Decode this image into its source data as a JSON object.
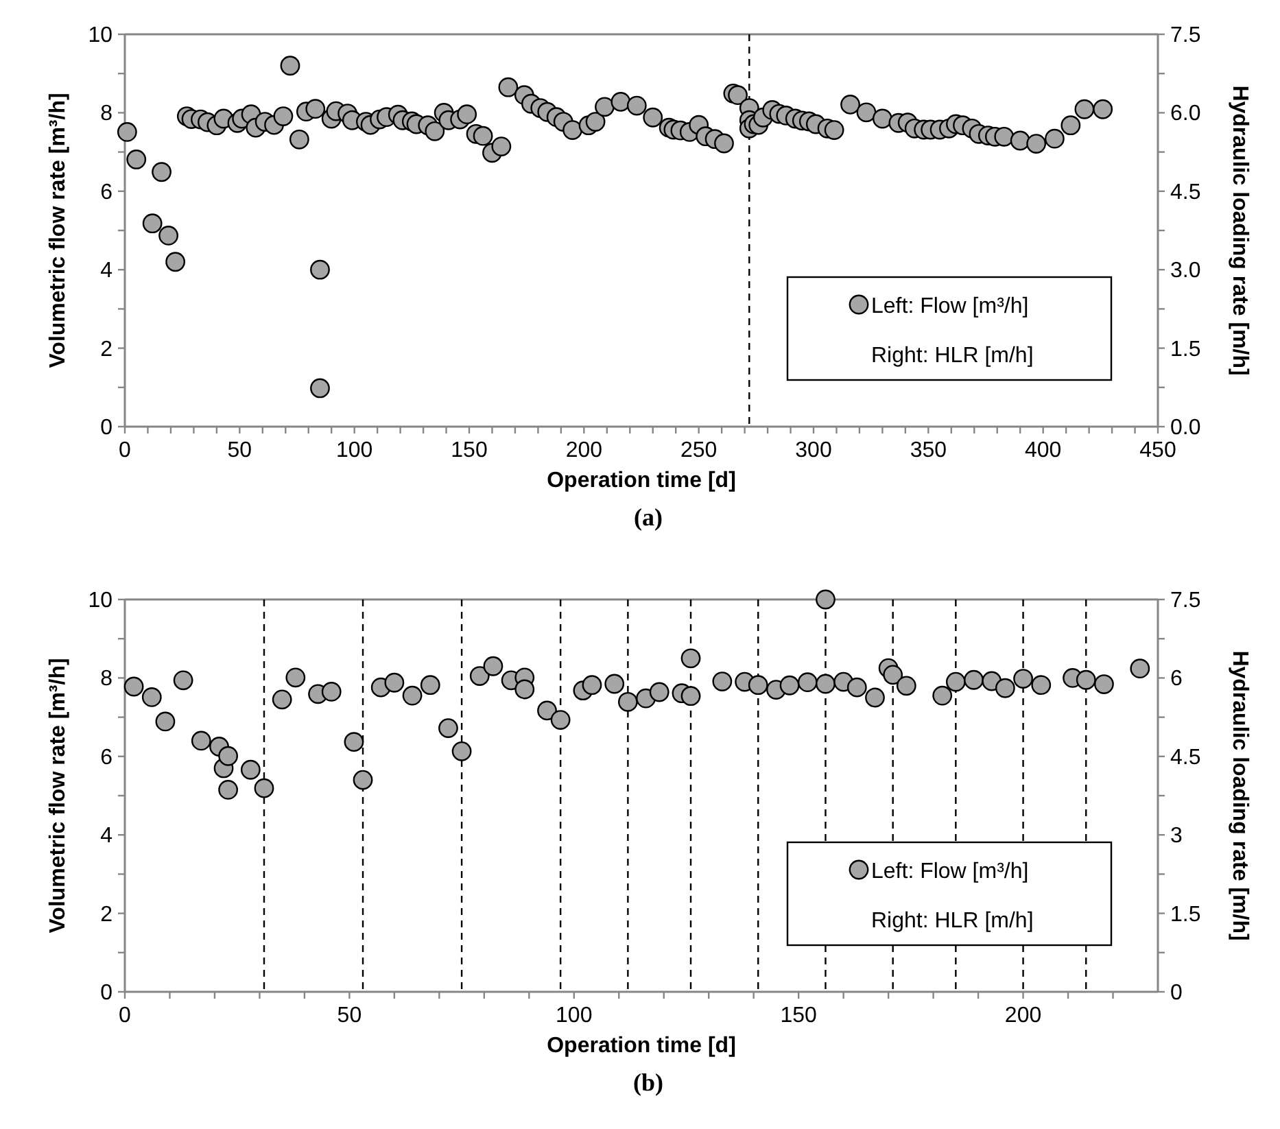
{
  "chart_data": [
    {
      "type": "scatter",
      "title": "(a)",
      "xlabel": "Operation time [d]",
      "ylabel": "Volumetric flow rate [m³/h]",
      "y2label": "Hydraulic loading rate [m/h]",
      "xlim": [
        0,
        450
      ],
      "xticks": [
        0,
        {
          "value": 10,
          "label": null
        },
        {
          "value": 20,
          "label": null
        },
        {
          "value": 30,
          "label": null
        },
        {
          "value": 40,
          "label": null
        },
        50,
        {
          "value": 60,
          "label": null
        },
        {
          "value": 70,
          "label": null
        },
        {
          "value": 80,
          "label": null
        },
        {
          "value": 90,
          "label": null
        },
        100,
        {
          "value": 110,
          "label": null
        },
        {
          "value": 120,
          "label": null
        },
        {
          "value": 130,
          "label": null
        },
        {
          "value": 140,
          "label": null
        },
        150,
        {
          "value": 160,
          "label": null
        },
        {
          "value": 170,
          "label": null
        },
        {
          "value": 180,
          "label": null
        },
        {
          "value": 190,
          "label": null
        },
        200,
        {
          "value": 210,
          "label": null
        },
        {
          "value": 220,
          "label": null
        },
        {
          "value": 230,
          "label": null
        },
        {
          "value": 240,
          "label": null
        },
        250,
        {
          "value": 260,
          "label": null
        },
        {
          "value": 270,
          "label": null
        },
        {
          "value": 280,
          "label": null
        },
        {
          "value": 290,
          "label": null
        },
        300,
        {
          "value": 310,
          "label": null
        },
        {
          "value": 320,
          "label": null
        },
        {
          "value": 330,
          "label": null
        },
        {
          "value": 340,
          "label": null
        },
        350,
        {
          "value": 360,
          "label": null
        },
        {
          "value": 370,
          "label": null
        },
        {
          "value": 380,
          "label": null
        },
        {
          "value": 390,
          "label": null
        },
        400,
        {
          "value": 410,
          "label": null
        },
        {
          "value": 420,
          "label": null
        },
        {
          "value": 430,
          "label": null
        },
        {
          "value": 440,
          "label": null
        },
        450
      ],
      "ylim": [
        0,
        10
      ],
      "yticks": [
        0,
        {
          "value": 1,
          "label": null
        },
        2,
        {
          "value": 3,
          "label": null
        },
        4,
        {
          "value": 5,
          "label": null
        },
        6,
        {
          "value": 7,
          "label": null
        },
        8,
        {
          "value": 9,
          "label": null
        },
        10
      ],
      "y2lim": [
        0,
        7.5
      ],
      "y2ticks": [
        {
          "value": 0,
          "label": "0.0"
        },
        {
          "value": 0.75,
          "label": null
        },
        1.5,
        {
          "value": 2.25,
          "label": null
        },
        {
          "value": 3,
          "label": "3.0"
        },
        {
          "value": 3.75,
          "label": null
        },
        4.5,
        {
          "value": 5.25,
          "label": null
        },
        {
          "value": 6,
          "label": "6.0"
        },
        {
          "value": 6.75,
          "label": null
        },
        7.5
      ],
      "marker": "circle",
      "legend": "bottom right",
      "grid": false,
      "annotations": [
        "Right: HLR [m/h]"
      ],
      "ref_lines": [
        {
          "axis": "x",
          "value": 272,
          "color": "#000000",
          "line_style": "dashed"
        }
      ],
      "series": [
        {
          "name": "Left: Flow [m³/h]",
          "color": "#a6a6a6",
          "x": [
            1,
            5,
            12,
            16,
            19,
            22,
            27,
            29,
            33,
            36,
            40,
            43,
            49,
            51,
            55,
            57,
            61,
            65,
            69,
            72,
            76,
            79,
            83,
            85,
            85,
            90,
            92,
            97,
            99,
            105,
            107,
            111,
            114,
            119,
            121,
            125,
            127,
            132,
            135,
            139,
            141,
            146,
            149,
            153,
            156,
            160,
            164,
            167,
            174,
            177,
            181,
            184,
            188,
            191,
            195,
            202,
            205,
            209,
            216,
            223,
            230,
            237,
            239,
            242,
            246,
            250,
            253,
            257,
            261,
            265,
            267,
            272,
            272,
            272,
            274,
            276,
            278,
            282,
            285,
            288,
            292,
            295,
            298,
            301,
            306,
            309,
            316,
            323,
            330,
            337,
            341,
            344,
            348,
            351,
            355,
            359,
            362,
            365,
            369,
            372,
            376,
            379,
            383,
            390,
            397,
            405,
            412,
            418,
            426
          ],
          "values": [
            7.51,
            6.81,
            5.18,
            6.49,
            4.87,
            4.2,
            7.91,
            7.84,
            7.83,
            7.76,
            7.68,
            7.85,
            7.74,
            7.85,
            7.96,
            7.62,
            7.77,
            7.69,
            7.91,
            9.2,
            7.32,
            8.03,
            8.1,
            4.0,
            0.98,
            7.85,
            8.04,
            7.98,
            7.81,
            7.77,
            7.69,
            7.83,
            7.89,
            7.95,
            7.81,
            7.78,
            7.71,
            7.68,
            7.53,
            8.0,
            7.81,
            7.83,
            7.96,
            7.46,
            7.41,
            6.98,
            7.14,
            8.65,
            8.45,
            8.23,
            8.12,
            8.02,
            7.89,
            7.77,
            7.56,
            7.68,
            7.77,
            8.15,
            8.28,
            8.18,
            7.88,
            7.62,
            7.57,
            7.55,
            7.51,
            7.69,
            7.4,
            7.33,
            7.22,
            8.49,
            8.45,
            8.12,
            7.81,
            7.6,
            7.71,
            7.69,
            7.88,
            8.07,
            7.97,
            7.93,
            7.85,
            7.8,
            7.78,
            7.71,
            7.6,
            7.56,
            8.21,
            8.01,
            7.85,
            7.74,
            7.75,
            7.6,
            7.57,
            7.57,
            7.57,
            7.6,
            7.71,
            7.68,
            7.6,
            7.46,
            7.42,
            7.39,
            7.39,
            7.29,
            7.21,
            7.34,
            7.68,
            8.09,
            8.09
          ]
        }
      ]
    },
    {
      "type": "scatter",
      "title": "(b)",
      "xlabel": "Operation time [d]",
      "ylabel": "Volumetric flow rate [m³/h]",
      "y2label": "Hydraulic loading rate [m/h]",
      "xlim": [
        0,
        230
      ],
      "xticks": [
        0,
        {
          "value": 10,
          "label": null
        },
        {
          "value": 20,
          "label": null
        },
        {
          "value": 30,
          "label": null
        },
        {
          "value": 40,
          "label": null
        },
        50,
        {
          "value": 60,
          "label": null
        },
        {
          "value": 70,
          "label": null
        },
        {
          "value": 80,
          "label": null
        },
        {
          "value": 90,
          "label": null
        },
        100,
        {
          "value": 110,
          "label": null
        },
        {
          "value": 120,
          "label": null
        },
        {
          "value": 130,
          "label": null
        },
        {
          "value": 140,
          "label": null
        },
        150,
        {
          "value": 160,
          "label": null
        },
        {
          "value": 170,
          "label": null
        },
        {
          "value": 180,
          "label": null
        },
        {
          "value": 190,
          "label": null
        },
        200,
        {
          "value": 210,
          "label": null
        },
        {
          "value": 220,
          "label": null
        }
      ],
      "ylim": [
        0,
        10
      ],
      "yticks": [
        0,
        {
          "value": 1,
          "label": null
        },
        2,
        {
          "value": 3,
          "label": null
        },
        4,
        {
          "value": 5,
          "label": null
        },
        6,
        {
          "value": 7,
          "label": null
        },
        8,
        {
          "value": 9,
          "label": null
        },
        10
      ],
      "y2lim": [
        0,
        7.5
      ],
      "y2ticks": [
        0,
        {
          "value": 0.75,
          "label": null
        },
        1.5,
        {
          "value": 2.25,
          "label": null
        },
        3,
        {
          "value": 3.75,
          "label": null
        },
        4.5,
        {
          "value": 5.25,
          "label": null
        },
        6,
        {
          "value": 6.75,
          "label": null
        },
        7.5
      ],
      "marker": "circle",
      "legend": "bottom right",
      "grid": false,
      "annotations": [
        "Right: HLR [m/h]"
      ],
      "ref_lines": [
        {
          "axis": "x",
          "value": 31,
          "color": "#000000",
          "line_style": "dashed"
        },
        {
          "axis": "x",
          "value": 53,
          "color": "#000000",
          "line_style": "dashed"
        },
        {
          "axis": "x",
          "value": 75,
          "color": "#000000",
          "line_style": "dashed"
        },
        {
          "axis": "x",
          "value": 97,
          "color": "#000000",
          "line_style": "dashed"
        },
        {
          "axis": "x",
          "value": 112,
          "color": "#000000",
          "line_style": "dashed"
        },
        {
          "axis": "x",
          "value": 126,
          "color": "#000000",
          "line_style": "dashed"
        },
        {
          "axis": "x",
          "value": 141,
          "color": "#000000",
          "line_style": "dashed"
        },
        {
          "axis": "x",
          "value": 156,
          "color": "#000000",
          "line_style": "dashed"
        },
        {
          "axis": "x",
          "value": 171,
          "color": "#000000",
          "line_style": "dashed"
        },
        {
          "axis": "x",
          "value": 185,
          "color": "#000000",
          "line_style": "dashed"
        },
        {
          "axis": "x",
          "value": 200,
          "color": "#000000",
          "line_style": "dashed"
        },
        {
          "axis": "x",
          "value": 214,
          "color": "#000000",
          "line_style": "dashed"
        }
      ],
      "series": [
        {
          "name": "Left: Flow [m³/h]",
          "color": "#a6a6a6",
          "x": [
            2,
            6,
            9,
            13,
            17,
            21,
            22,
            23,
            23,
            28,
            31,
            35,
            38,
            43,
            46,
            51,
            53,
            57,
            60,
            64,
            68,
            72,
            75,
            79,
            82,
            86,
            89,
            89,
            94,
            97,
            102,
            104,
            109,
            112,
            116,
            119,
            124,
            126,
            126,
            133,
            138,
            141,
            145,
            148,
            152,
            156,
            156,
            160,
            163,
            167,
            170,
            171,
            174,
            182,
            185,
            189,
            193,
            196,
            200,
            204,
            211,
            214,
            218,
            226
          ],
          "values": [
            7.78,
            7.51,
            6.89,
            7.94,
            6.4,
            6.25,
            5.7,
            6.01,
            5.15,
            5.66,
            5.19,
            7.45,
            8.01,
            7.59,
            7.65,
            6.37,
            5.4,
            7.76,
            7.88,
            7.55,
            7.82,
            6.72,
            6.13,
            8.05,
            8.3,
            7.94,
            8.01,
            7.71,
            7.17,
            6.93,
            7.68,
            7.82,
            7.85,
            7.39,
            7.48,
            7.64,
            7.61,
            8.5,
            7.54,
            7.91,
            7.9,
            7.82,
            7.7,
            7.81,
            7.89,
            10.0,
            7.85,
            7.9,
            7.76,
            7.5,
            8.25,
            8.08,
            7.8,
            7.55,
            7.9,
            7.95,
            7.92,
            7.74,
            7.98,
            7.82,
            8.0,
            7.95,
            7.84,
            8.24
          ]
        }
      ]
    }
  ]
}
